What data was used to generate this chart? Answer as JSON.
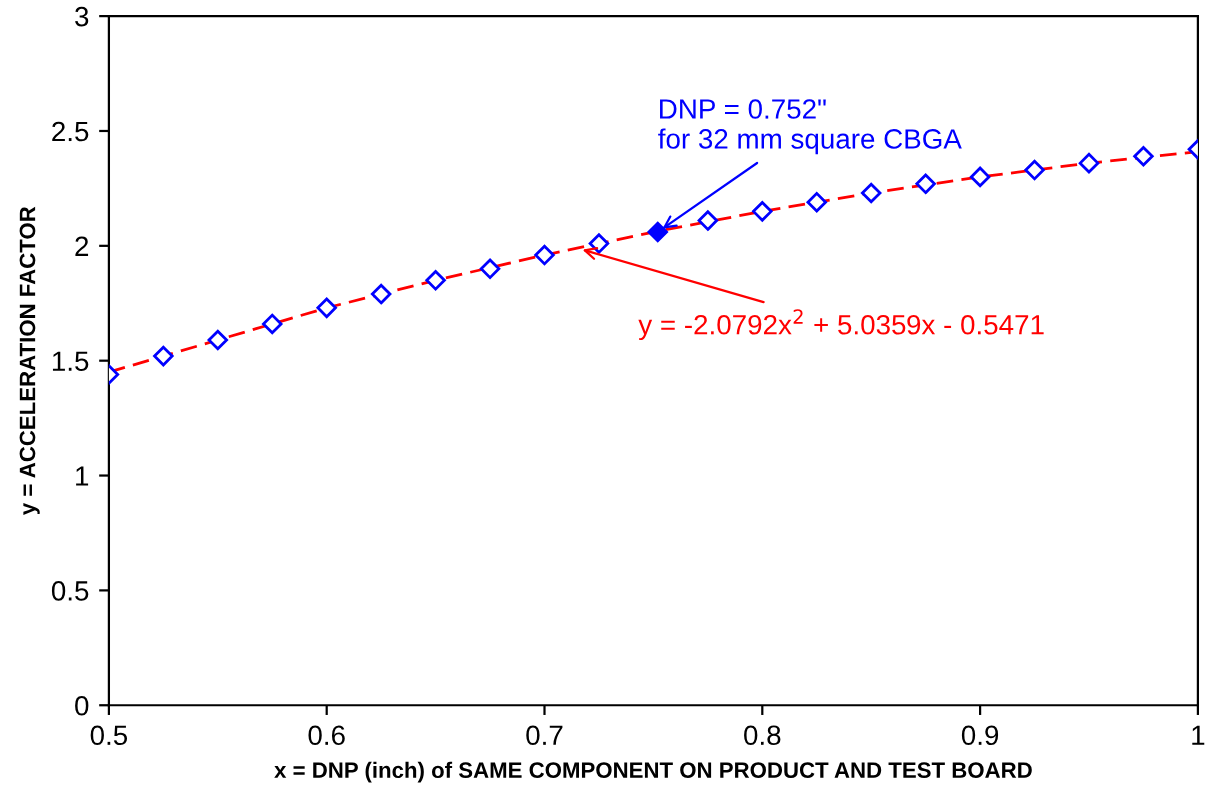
{
  "chart_data": {
    "type": "scatter",
    "xlabel": "x = DNP (inch) of SAME COMPONENT ON PRODUCT AND TEST BOARD",
    "ylabel": "y = ACCELERATION FACTOR",
    "x": [
      0.5,
      0.525,
      0.55,
      0.575,
      0.6,
      0.625,
      0.65,
      0.675,
      0.7,
      0.725,
      0.75,
      0.775,
      0.8,
      0.825,
      0.85,
      0.875,
      0.9,
      0.925,
      0.95,
      0.975,
      1
    ],
    "series": [
      {
        "color": "#0000ff",
        "marker": "diamond",
        "values": [
          1.44,
          1.52,
          1.59,
          1.66,
          1.73,
          1.79,
          1.85,
          1.9,
          1.96,
          2.01,
          null,
          2.11,
          2.15,
          2.19,
          2.23,
          2.27,
          2.3,
          2.33,
          2.36,
          2.39,
          2.42
        ]
      },
      {
        "type": "line",
        "color": "#ff0000",
        "line_style": "dashed",
        "x": [
          0.5,
          0.55,
          0.6,
          0.65,
          0.7,
          0.75,
          0.8,
          0.85,
          0.9,
          0.95,
          1
        ],
        "values": [
          1.45,
          1.59,
          1.73,
          1.85,
          1.96,
          2.06,
          2.15,
          2.23,
          2.3,
          2.36,
          2.41
        ]
      },
      {
        "type": "scatter",
        "color": "#0000ff",
        "marker": "diamond",
        "x": [
          0.752
        ],
        "values": [
          2.06
        ]
      }
    ],
    "annotations": [
      {
        "text": "DNP = 0.752\"\nfor 32 mm square CBGA",
        "x": 0.752,
        "y": 2.06
      },
      {
        "text": "y = -2.0792x$^{2}$ + 5.0359x - 0.5471",
        "x": 0.715,
        "y": 1.99
      }
    ],
    "xlim": [
      0.5,
      1
    ],
    "xticks": [
      0.5,
      0.6,
      0.7,
      0.8,
      0.9,
      1
    ],
    "ylim": [
      0,
      3
    ],
    "yticks": [
      0,
      0.5,
      1,
      1.5,
      2,
      2.5,
      3
    ],
    "grid": false,
    "legend": false
  }
}
